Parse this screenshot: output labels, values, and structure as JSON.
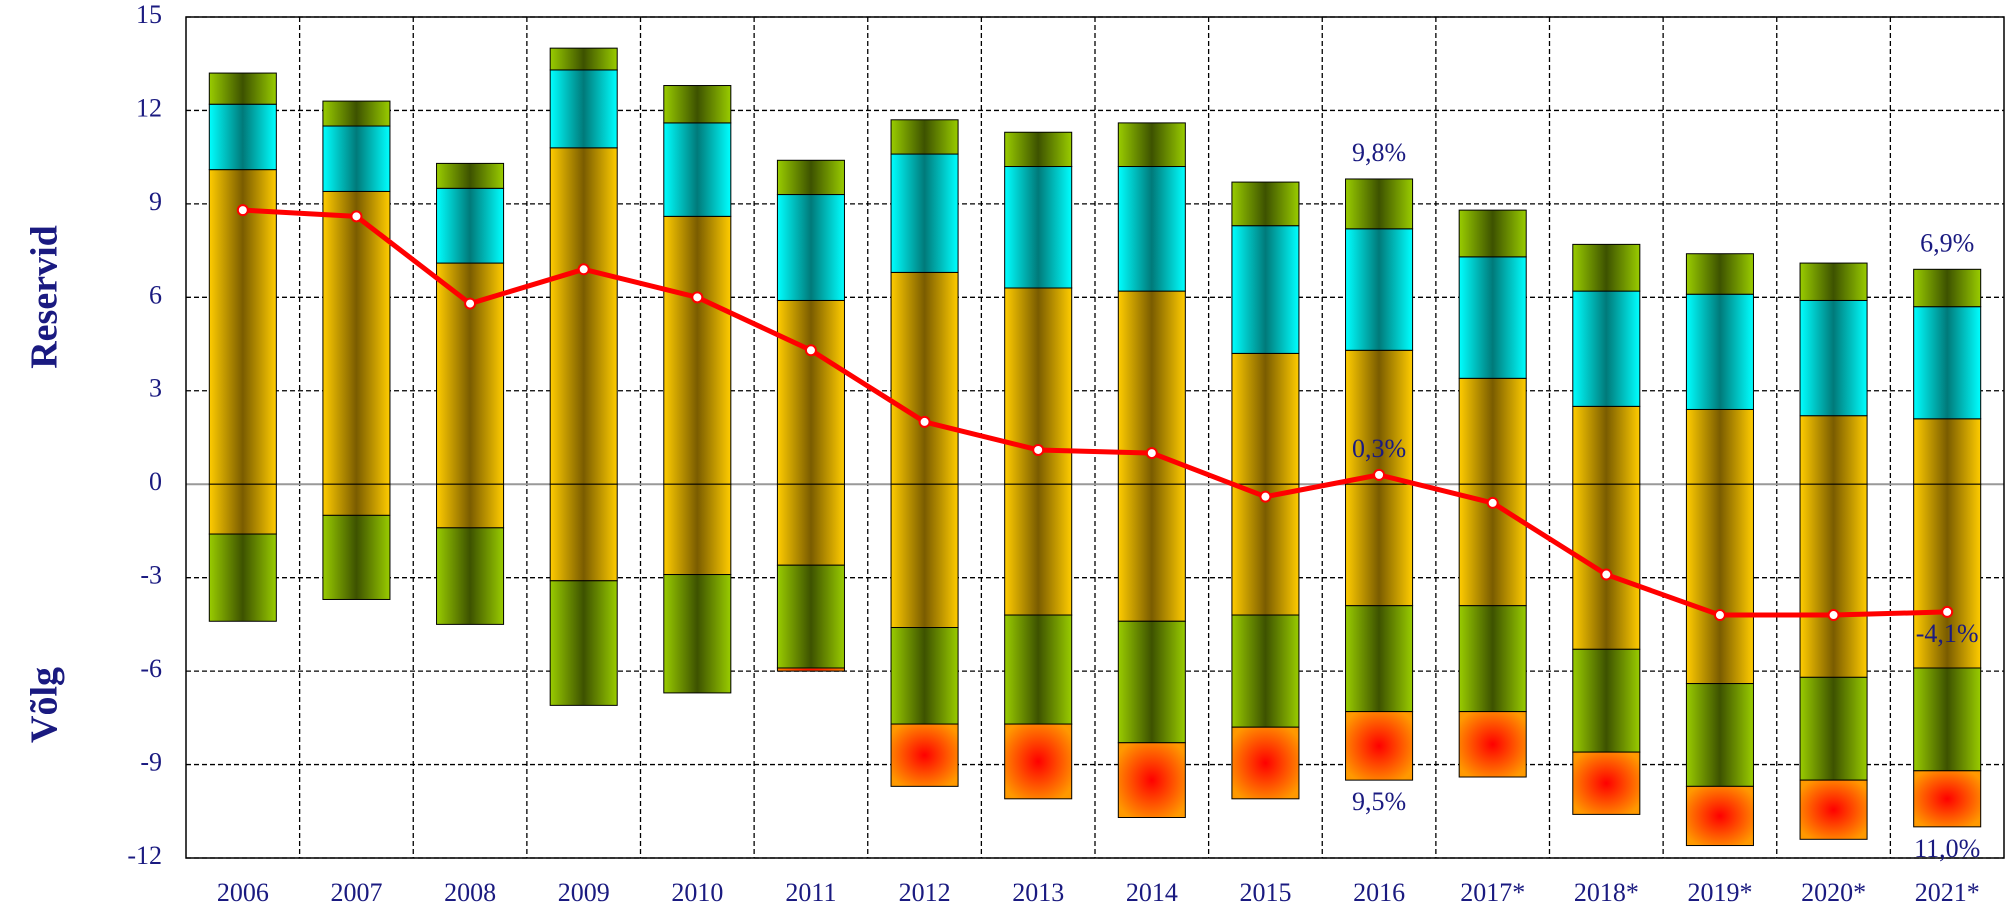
{
  "chart_data": {
    "type": "bar",
    "stacked": true,
    "categories": [
      "2006",
      "2007",
      "2008",
      "2009",
      "2010",
      "2011",
      "2012",
      "2013",
      "2014",
      "2015",
      "2016",
      "2017*",
      "2018*",
      "2019*",
      "2020*",
      "2021*"
    ],
    "ylabel_top": "Reservid",
    "ylabel_bottom": "Võlg",
    "ylim": [
      -12,
      15
    ],
    "yticks": [
      -12,
      -9,
      -6,
      -3,
      0,
      3,
      6,
      9,
      12,
      15
    ],
    "grid": true,
    "series": [
      {
        "color": "#ffcc00",
        "center_color": "#7a5c00",
        "values": [
          10.1,
          9.4,
          7.1,
          10.8,
          8.6,
          5.9,
          6.8,
          6.3,
          6.2,
          4.2,
          4.3,
          3.4,
          2.5,
          2.4,
          2.2,
          2.1
        ]
      },
      {
        "color": "#00ffff",
        "center_color": "#007a7a",
        "values": [
          2.1,
          2.1,
          2.4,
          2.5,
          3.0,
          3.4,
          3.8,
          3.9,
          4.0,
          4.1,
          3.9,
          3.9,
          3.7,
          3.7,
          3.7,
          3.6
        ]
      },
      {
        "color": "#99cc00",
        "center_color": "#3d5200",
        "values": [
          1.0,
          0.8,
          0.8,
          0.7,
          1.2,
          1.1,
          1.1,
          1.1,
          1.4,
          1.4,
          1.6,
          1.5,
          1.5,
          1.3,
          1.2,
          1.2
        ]
      },
      {
        "color": "#ffcc00",
        "center_color": "#7a5c00",
        "values": [
          -1.6,
          -1.0,
          -1.4,
          -3.1,
          -2.9,
          -2.6,
          -4.6,
          -4.2,
          -4.4,
          -4.2,
          -3.9,
          -3.9,
          -5.3,
          -6.4,
          -6.2,
          -5.9
        ]
      },
      {
        "color": "#99cc00",
        "center_color": "#3d5200",
        "values": [
          -2.8,
          -2.7,
          -3.1,
          -4.0,
          -3.8,
          -3.3,
          -3.1,
          -3.5,
          -3.9,
          -3.6,
          -3.4,
          -3.4,
          -3.3,
          -3.3,
          -3.3,
          -3.3
        ]
      },
      {
        "color": "#ff9900",
        "center_color": "#ff0000",
        "gradient": "radial",
        "values": [
          0,
          0,
          0,
          0,
          0,
          -0.1,
          -2.0,
          -2.4,
          -2.4,
          -2.3,
          -2.2,
          -2.1,
          -2.0,
          -1.9,
          -1.9,
          -1.8
        ]
      },
      {
        "type": "line",
        "color": "#ff0000",
        "values": [
          8.8,
          8.6,
          5.8,
          6.9,
          6.0,
          4.3,
          2.0,
          1.1,
          1.0,
          -0.4,
          0.3,
          -0.6,
          -2.9,
          -4.2,
          -4.2,
          -4.1
        ]
      }
    ],
    "annotations": [
      {
        "category": "2016",
        "value": 9.8,
        "label": "9,8%"
      },
      {
        "category": "2016",
        "value": 0.3,
        "label": "0,3%"
      },
      {
        "category": "2016",
        "value": -9.5,
        "label": "9,5%"
      },
      {
        "category": "2021*",
        "value": 6.9,
        "label": "6,9%"
      },
      {
        "category": "2021*",
        "value": -4.1,
        "label": "-4,1%"
      },
      {
        "category": "2021*",
        "value": -11.0,
        "label": "11,0%"
      }
    ]
  }
}
